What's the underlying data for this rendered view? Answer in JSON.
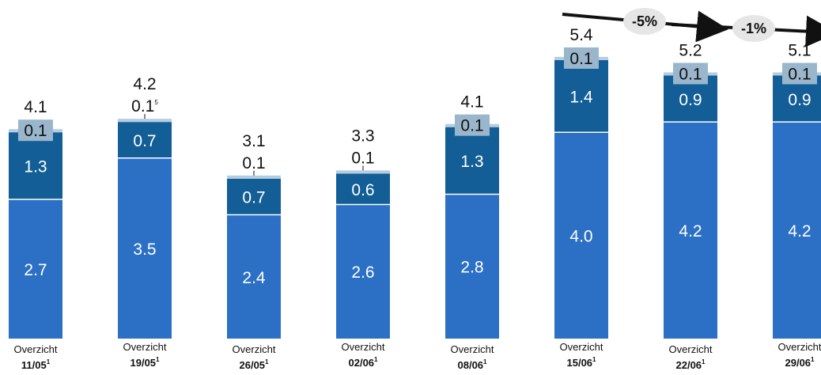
{
  "chart_data": {
    "type": "bar",
    "stacked": true,
    "categories": [
      {
        "line1": "Overzicht",
        "line2": "11/05",
        "sup": "1"
      },
      {
        "line1": "Overzicht",
        "line2": "19/05",
        "sup": "1"
      },
      {
        "line1": "Overzicht",
        "line2": "26/05",
        "sup": "1"
      },
      {
        "line1": "Overzicht",
        "line2": "02/06",
        "sup": "1"
      },
      {
        "line1": "Overzicht",
        "line2": "08/06",
        "sup": "1"
      },
      {
        "line1": "Overzicht",
        "line2": "15/06",
        "sup": "1"
      },
      {
        "line1": "Overzicht",
        "line2": "22/06",
        "sup": "1"
      },
      {
        "line1": "Overzicht",
        "line2": "29/06",
        "sup": "1"
      }
    ],
    "series": [
      {
        "values": [
          2.7,
          3.5,
          2.4,
          2.6,
          2.8,
          4.0,
          4.2,
          4.2
        ],
        "labels": [
          "2.7",
          "3.5",
          "2.4",
          "2.6",
          "2.8",
          "4.0",
          "4.2",
          "4.2"
        ],
        "color": "#2c70c6"
      },
      {
        "values": [
          1.3,
          0.7,
          0.7,
          0.6,
          1.3,
          1.4,
          0.9,
          0.9
        ],
        "labels": [
          "1.3",
          "0.7",
          "0.7",
          "0.6",
          "1.3",
          "1.4",
          "0.9",
          "0.9"
        ],
        "color": "#135e96"
      },
      {
        "values": [
          0.1,
          0.1,
          0.1,
          0.1,
          0.1,
          0.1,
          0.1,
          0.1
        ],
        "labels": [
          "0.1",
          "0.1",
          "0.1",
          "0.1",
          "0.1",
          "0.1",
          "0.1",
          "0.1"
        ],
        "label_sup": [
          "",
          "5",
          "",
          "",
          "",
          "",
          "",
          ""
        ],
        "label_boxed": [
          true,
          false,
          false,
          false,
          true,
          true,
          true,
          true
        ],
        "color": "#b4cde0"
      }
    ],
    "totals": [
      "4.1",
      "4.2",
      "3.1",
      "3.3",
      "4.1",
      "5.4",
      "5.2",
      "5.1"
    ],
    "changes": [
      {
        "from": 5,
        "to": 6,
        "label": "-5%"
      },
      {
        "from": 6,
        "to": 7,
        "label": "-1%"
      }
    ]
  }
}
